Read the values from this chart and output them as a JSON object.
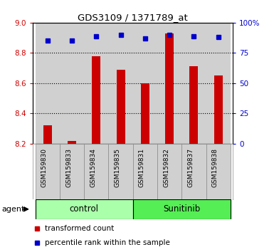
{
  "title": "GDS3109 / 1371789_at",
  "samples": [
    "GSM159830",
    "GSM159833",
    "GSM159834",
    "GSM159835",
    "GSM159831",
    "GSM159832",
    "GSM159837",
    "GSM159838"
  ],
  "bar_values": [
    8.32,
    8.22,
    8.78,
    8.69,
    8.6,
    8.93,
    8.71,
    8.65
  ],
  "bar_base": 8.2,
  "percentile_values": [
    85,
    85,
    89,
    90,
    87,
    90,
    89,
    88
  ],
  "bar_color": "#cc0000",
  "percentile_color": "#0000cc",
  "ylim": [
    8.2,
    9.0
  ],
  "ylim_right": [
    0,
    100
  ],
  "yticks_left": [
    8.2,
    8.4,
    8.6,
    8.8,
    9.0
  ],
  "yticks_right": [
    0,
    25,
    50,
    75,
    100
  ],
  "left_tick_color": "#cc0000",
  "right_tick_color": "#0000cc",
  "group_control_label": "control",
  "group_sunitinib_label": "Sunitinib",
  "agent_label": "agent",
  "control_bg": "#aaffaa",
  "sunitinib_bg": "#55ee55",
  "bar_area_bg": "#d0d0d0",
  "legend_bar_label": "transformed count",
  "legend_pct_label": "percentile rank within the sample",
  "white": "#ffffff"
}
